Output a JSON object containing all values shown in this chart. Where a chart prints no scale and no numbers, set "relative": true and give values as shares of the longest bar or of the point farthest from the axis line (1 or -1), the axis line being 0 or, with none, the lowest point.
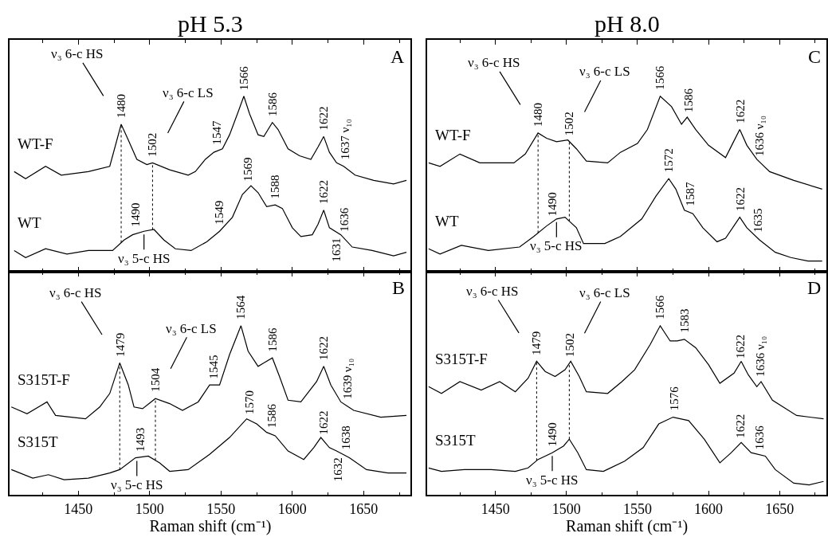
{
  "chart_data": [
    {
      "type": "line",
      "relative": true,
      "title": "pH 5.3",
      "xlim": [
        1402,
        1683
      ],
      "xticks": [
        {
          "value": 1425,
          "label": null
        },
        1450,
        {
          "value": 1475,
          "label": null
        },
        1500,
        {
          "value": 1525,
          "label": null
        },
        1550,
        {
          "value": 1575,
          "label": null
        },
        1600,
        {
          "value": 1625,
          "label": null
        },
        1650,
        {
          "value": 1675,
          "label": null
        }
      ],
      "tick_labels": false,
      "series": [
        {
          "name": "WT-F",
          "color": "#000000",
          "x": [
            1405,
            1413,
            1427,
            1438,
            1457,
            1472,
            1477,
            1480,
            1485,
            1491,
            1498,
            1502,
            1514,
            1527,
            1532,
            1539,
            1545,
            1551,
            1556,
            1562,
            1566,
            1570,
            1576,
            1580,
            1586,
            1590,
            1597,
            1605,
            1613,
            1618,
            1622,
            1626,
            1631,
            1636,
            1644,
            1657,
            1671,
            1680
          ],
          "values": [
            0.57,
            0.53,
            0.6,
            0.55,
            0.57,
            0.6,
            0.75,
            0.84,
            0.75,
            0.64,
            0.61,
            0.62,
            0.58,
            0.55,
            0.57,
            0.64,
            0.68,
            0.7,
            0.78,
            0.91,
            1.0,
            0.9,
            0.78,
            0.77,
            0.85,
            0.81,
            0.7,
            0.66,
            0.64,
            0.71,
            0.77,
            0.68,
            0.62,
            0.6,
            0.55,
            0.52,
            0.5,
            0.52
          ]
        },
        {
          "name": "WT",
          "color": "#000000",
          "x": [
            1405,
            1413,
            1427,
            1442,
            1457,
            1474,
            1482,
            1488,
            1496,
            1503,
            1510,
            1518,
            1529,
            1540,
            1549,
            1558,
            1565,
            1571,
            1576,
            1582,
            1588,
            1593,
            1600,
            1606,
            1614,
            1618,
            1622,
            1626,
            1634,
            1642,
            1656,
            1671,
            1680
          ],
          "values": [
            0.12,
            0.08,
            0.13,
            0.1,
            0.12,
            0.12,
            0.18,
            0.21,
            0.23,
            0.24,
            0.18,
            0.13,
            0.12,
            0.17,
            0.23,
            0.31,
            0.44,
            0.49,
            0.45,
            0.37,
            0.38,
            0.36,
            0.25,
            0.2,
            0.21,
            0.27,
            0.35,
            0.25,
            0.21,
            0.14,
            0.12,
            0.09,
            0.11
          ]
        }
      ],
      "ref_lines": [
        {
          "axis": "x",
          "value": 1480,
          "line_style": "dotted"
        },
        {
          "axis": "x",
          "value": 1502,
          "line_style": "dotted"
        }
      ],
      "annotations": [
        "A",
        {
          "text": "ν₃ 6-c HS",
          "x": 1480,
          "y": 0.84
        },
        {
          "text": "ν₃ 6-c LS",
          "x": 1502,
          "y": 0.62
        },
        {
          "text": "ν₃ 5-c HS",
          "x": 1496,
          "y": 0.23
        },
        {
          "text": "1480",
          "x": 1480,
          "y": 0.84
        },
        {
          "text": "1502",
          "x": 1502,
          "y": 0.62
        },
        {
          "text": "1547",
          "x": 1547,
          "y": 0.69
        },
        {
          "text": "1566",
          "x": 1566,
          "y": 1.0
        },
        {
          "text": "1586",
          "x": 1586,
          "y": 0.85
        },
        {
          "text": "1622",
          "x": 1622,
          "y": 0.77
        },
        {
          "text": "1637 ν₁₀",
          "x": 1637,
          "y": 0.6
        },
        {
          "text": "1490",
          "x": 1490,
          "y": 0.22
        },
        {
          "text": "1549",
          "x": 1549,
          "y": 0.23
        },
        {
          "text": "1569",
          "x": 1569,
          "y": 0.48
        },
        {
          "text": "1588",
          "x": 1588,
          "y": 0.38
        },
        {
          "text": "1622",
          "x": 1622,
          "y": 0.35
        },
        {
          "text": "1636",
          "x": 1636,
          "y": 0.19
        },
        {
          "text": "1631",
          "x": 1631,
          "y": 0.23
        }
      ]
    },
    {
      "type": "line",
      "relative": true,
      "title": "pH 8.0",
      "xlim": [
        1402,
        1683
      ],
      "xticks": [
        {
          "value": 1425,
          "label": null
        },
        1450,
        {
          "value": 1475,
          "label": null
        },
        1500,
        {
          "value": 1525,
          "label": null
        },
        1550,
        {
          "value": 1575,
          "label": null
        },
        1600,
        {
          "value": 1625,
          "label": null
        },
        1650,
        {
          "value": 1675,
          "label": null
        }
      ],
      "tick_labels": false,
      "series": [
        {
          "name": "WT-F",
          "color": "#000000",
          "x": [
            1403,
            1411,
            1425,
            1439,
            1463,
            1471,
            1480,
            1486,
            1493,
            1501,
            1507,
            1514,
            1529,
            1538,
            1550,
            1557,
            1566,
            1574,
            1581,
            1585,
            1591,
            1600,
            1612,
            1617,
            1622,
            1627,
            1634,
            1643,
            1660,
            1680
          ],
          "values": [
            0.62,
            0.6,
            0.67,
            0.62,
            0.62,
            0.67,
            0.79,
            0.76,
            0.74,
            0.75,
            0.7,
            0.63,
            0.62,
            0.68,
            0.73,
            0.81,
            1.0,
            0.94,
            0.84,
            0.88,
            0.81,
            0.72,
            0.65,
            0.73,
            0.81,
            0.72,
            0.64,
            0.57,
            0.52,
            0.47
          ]
        },
        {
          "name": "WT",
          "color": "#000000",
          "x": [
            1403,
            1411,
            1426,
            1445,
            1467,
            1477,
            1486,
            1493,
            1499,
            1507,
            1512,
            1527,
            1538,
            1553,
            1563,
            1572,
            1577,
            1583,
            1589,
            1596,
            1606,
            1612,
            1622,
            1627,
            1636,
            1647,
            1658,
            1670,
            1680
          ],
          "values": [
            0.13,
            0.1,
            0.15,
            0.12,
            0.14,
            0.2,
            0.26,
            0.3,
            0.31,
            0.25,
            0.16,
            0.16,
            0.2,
            0.3,
            0.43,
            0.53,
            0.47,
            0.35,
            0.33,
            0.25,
            0.17,
            0.19,
            0.31,
            0.25,
            0.18,
            0.11,
            0.08,
            0.06,
            0.06
          ]
        }
      ],
      "ref_lines": [
        {
          "axis": "x",
          "value": 1480,
          "line_style": "dotted"
        },
        {
          "axis": "x",
          "value": 1502,
          "line_style": "dotted"
        }
      ],
      "annotations": [
        "C",
        {
          "text": "ν₃ 6-c HS",
          "x": 1480,
          "y": 0.79
        },
        {
          "text": "ν₃ 6-c LS",
          "x": 1502,
          "y": 0.74
        },
        {
          "text": "ν₃ 5-c HS",
          "x": 1493,
          "y": 0.3
        },
        {
          "text": "1480",
          "x": 1480,
          "y": 0.79
        },
        {
          "text": "1502",
          "x": 1502,
          "y": 0.74
        },
        {
          "text": "1566",
          "x": 1566,
          "y": 1.0
        },
        {
          "text": "1586",
          "x": 1586,
          "y": 0.87
        },
        {
          "text": "1622",
          "x": 1622,
          "y": 0.81
        },
        {
          "text": "1636 ν₁₀",
          "x": 1636,
          "y": 0.62
        },
        {
          "text": "1572",
          "x": 1572,
          "y": 0.53
        },
        {
          "text": "1587",
          "x": 1587,
          "y": 0.34
        },
        {
          "text": "1490",
          "x": 1490,
          "y": 0.28
        },
        {
          "text": "1622",
          "x": 1622,
          "y": 0.31
        },
        {
          "text": "1635",
          "x": 1635,
          "y": 0.19
        }
      ]
    },
    {
      "type": "line",
      "relative": true,
      "xlabel": "Raman shift (cm⁻¹)",
      "xlim": [
        1402,
        1683
      ],
      "xticks": [
        {
          "value": 1425,
          "label": null
        },
        1450,
        {
          "value": 1475,
          "label": null
        },
        1500,
        {
          "value": 1525,
          "label": null
        },
        1550,
        {
          "value": 1575,
          "label": null
        },
        1600,
        {
          "value": 1625,
          "label": null
        },
        1650,
        {
          "value": 1675,
          "label": null
        }
      ],
      "tick_labels": "x",
      "series": [
        {
          "name": "S315T-F",
          "color": "#000000",
          "x": [
            1403,
            1414,
            1428,
            1434,
            1455,
            1465,
            1472,
            1479,
            1485,
            1489,
            1495,
            1504,
            1514,
            1523,
            1534,
            1542,
            1549,
            1556,
            1564,
            1569,
            1576,
            1580,
            1586,
            1591,
            1597,
            1606,
            1617,
            1622,
            1627,
            1634,
            1643,
            1662,
            1680
          ],
          "values": [
            0.52,
            0.48,
            0.55,
            0.47,
            0.45,
            0.52,
            0.6,
            0.78,
            0.65,
            0.52,
            0.51,
            0.57,
            0.54,
            0.5,
            0.55,
            0.65,
            0.65,
            0.83,
            1.0,
            0.85,
            0.76,
            0.78,
            0.81,
            0.7,
            0.56,
            0.55,
            0.67,
            0.76,
            0.65,
            0.55,
            0.5,
            0.46,
            0.47
          ]
        },
        {
          "name": "S315T",
          "color": "#000000",
          "x": [
            1403,
            1418,
            1429,
            1440,
            1457,
            1472,
            1479,
            1490,
            1499,
            1507,
            1514,
            1527,
            1542,
            1556,
            1568,
            1575,
            1582,
            1588,
            1597,
            1608,
            1615,
            1620,
            1626,
            1631,
            1640,
            1652,
            1667,
            1680
          ],
          "values": [
            0.15,
            0.1,
            0.12,
            0.09,
            0.1,
            0.13,
            0.15,
            0.22,
            0.23,
            0.19,
            0.14,
            0.15,
            0.24,
            0.34,
            0.45,
            0.42,
            0.37,
            0.35,
            0.26,
            0.21,
            0.28,
            0.34,
            0.28,
            0.26,
            0.22,
            0.15,
            0.13,
            0.13
          ]
        }
      ],
      "ref_lines": [
        {
          "axis": "x",
          "value": 1479,
          "line_style": "dotted"
        },
        {
          "axis": "x",
          "value": 1504,
          "line_style": "dotted"
        }
      ],
      "annotations": [
        "B",
        {
          "text": "ν₃ 6-c HS",
          "x": 1479,
          "y": 0.78
        },
        {
          "text": "ν₃ 6-c LS",
          "x": 1504,
          "y": 0.57
        },
        {
          "text": "ν₃ 5-c HS",
          "x": 1491,
          "y": 0.22
        },
        {
          "text": "1479",
          "x": 1479,
          "y": 0.78
        },
        {
          "text": "1504",
          "x": 1504,
          "y": 0.57
        },
        {
          "text": "1545",
          "x": 1545,
          "y": 0.65
        },
        {
          "text": "1564",
          "x": 1564,
          "y": 1.0
        },
        {
          "text": "1586",
          "x": 1586,
          "y": 0.81
        },
        {
          "text": "1622",
          "x": 1622,
          "y": 0.76
        },
        {
          "text": "1639 ν₁₀",
          "x": 1639,
          "y": 0.53
        },
        {
          "text": "1493",
          "x": 1493,
          "y": 0.22
        },
        {
          "text": "1570",
          "x": 1570,
          "y": 0.44
        },
        {
          "text": "1586",
          "x": 1586,
          "y": 0.36
        },
        {
          "text": "1622",
          "x": 1622,
          "y": 0.32
        },
        {
          "text": "1638",
          "x": 1638,
          "y": 0.23
        },
        {
          "text": "1632",
          "x": 1632,
          "y": 0.26
        }
      ]
    },
    {
      "type": "line",
      "relative": true,
      "xlabel": "Raman shift (cm⁻¹)",
      "xlim": [
        1402,
        1683
      ],
      "xticks": [
        {
          "value": 1425,
          "label": null
        },
        1450,
        {
          "value": 1475,
          "label": null
        },
        1500,
        {
          "value": 1525,
          "label": null
        },
        1550,
        {
          "value": 1575,
          "label": null
        },
        1600,
        {
          "value": 1625,
          "label": null
        },
        1650,
        {
          "value": 1675,
          "label": null
        }
      ],
      "tick_labels": "x",
      "series": [
        {
          "name": "S315T-F",
          "color": "#000000",
          "x": [
            1403,
            1412,
            1425,
            1440,
            1453,
            1464,
            1473,
            1479,
            1485,
            1492,
            1499,
            1503,
            1509,
            1514,
            1529,
            1539,
            1548,
            1559,
            1566,
            1573,
            1578,
            1583,
            1591,
            1600,
            1608,
            1618,
            1623,
            1628,
            1634,
            1637,
            1645,
            1662,
            1681
          ],
          "values": [
            0.64,
            0.6,
            0.67,
            0.62,
            0.67,
            0.61,
            0.69,
            0.79,
            0.73,
            0.7,
            0.74,
            0.79,
            0.7,
            0.61,
            0.6,
            0.67,
            0.74,
            0.89,
            1.0,
            0.91,
            0.91,
            0.92,
            0.87,
            0.77,
            0.66,
            0.72,
            0.79,
            0.71,
            0.64,
            0.67,
            0.56,
            0.47,
            0.45
          ]
        },
        {
          "name": "S315T",
          "color": "#000000",
          "x": [
            1403,
            1412,
            1428,
            1447,
            1464,
            1473,
            1480,
            1490,
            1498,
            1502,
            1508,
            1514,
            1526,
            1541,
            1554,
            1565,
            1575,
            1586,
            1597,
            1608,
            1616,
            1623,
            1630,
            1640,
            1647,
            1660,
            1671,
            1681
          ],
          "values": [
            0.16,
            0.14,
            0.15,
            0.15,
            0.14,
            0.16,
            0.21,
            0.25,
            0.29,
            0.33,
            0.25,
            0.15,
            0.14,
            0.2,
            0.28,
            0.42,
            0.46,
            0.44,
            0.33,
            0.19,
            0.25,
            0.31,
            0.25,
            0.23,
            0.15,
            0.07,
            0.06,
            0.08
          ]
        }
      ],
      "ref_lines": [
        {
          "axis": "x",
          "value": 1479,
          "line_style": "dotted"
        },
        {
          "axis": "x",
          "value": 1502,
          "line_style": "dotted"
        }
      ],
      "annotations": [
        "D",
        {
          "text": "ν₃ 6-c HS",
          "x": 1479,
          "y": 0.79
        },
        {
          "text": "ν₃ 6-c LS",
          "x": 1502,
          "y": 0.78
        },
        {
          "text": "ν₃ 5-c HS",
          "x": 1490,
          "y": 0.25
        },
        {
          "text": "1479",
          "x": 1479,
          "y": 0.79
        },
        {
          "text": "1502",
          "x": 1502,
          "y": 0.78
        },
        {
          "text": "1566",
          "x": 1566,
          "y": 1.0
        },
        {
          "text": "1583",
          "x": 1583,
          "y": 0.92
        },
        {
          "text": "1622",
          "x": 1622,
          "y": 0.77
        },
        {
          "text": "1636 ν₁₀",
          "x": 1636,
          "y": 0.66
        },
        {
          "text": "1576",
          "x": 1576,
          "y": 0.46
        },
        {
          "text": "1490",
          "x": 1490,
          "y": 0.25
        },
        {
          "text": "1622",
          "x": 1622,
          "y": 0.3
        },
        {
          "text": "1636",
          "x": 1636,
          "y": 0.23
        }
      ]
    }
  ]
}
